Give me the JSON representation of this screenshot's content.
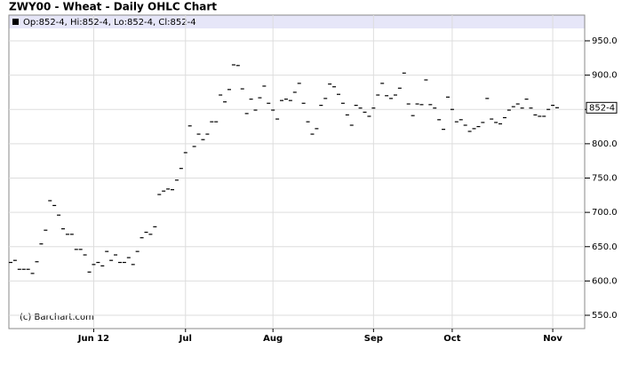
{
  "chart_data": {
    "type": "ohlc",
    "title": "ZWY00 - Wheat - Daily OHLC Chart",
    "legend_text": "Op:852-4, Hi:852-4, Lo:852-4, Cl:852-4",
    "source": "(c) Barchart.com",
    "values": [
      627,
      630,
      617,
      617,
      617,
      611,
      628,
      654,
      674,
      717,
      710,
      696,
      676,
      668,
      668,
      646,
      646,
      638,
      613,
      624,
      627,
      622,
      643,
      630,
      638,
      627,
      627,
      634,
      624,
      643,
      663,
      671,
      668,
      679,
      726,
      731,
      734,
      733,
      747,
      764,
      787,
      826,
      796,
      814,
      806,
      814,
      832,
      832,
      871,
      861,
      879,
      915,
      914,
      880,
      844,
      865,
      849,
      867,
      884,
      859,
      849,
      836,
      863,
      865,
      863,
      875,
      888,
      859,
      832,
      814,
      822,
      856,
      866,
      887,
      883,
      872,
      859,
      842,
      827,
      856,
      852,
      846,
      840,
      852,
      871,
      888,
      870,
      866,
      871,
      881,
      903,
      858,
      841,
      858,
      857,
      893,
      857,
      852,
      835,
      821,
      868,
      850,
      832,
      835,
      827,
      818,
      822,
      825,
      831,
      866,
      836,
      831,
      829,
      838,
      849,
      854,
      858,
      852,
      865,
      852,
      842,
      840,
      840,
      850,
      856,
      852.5
    ],
    "color": "#000000",
    "xlim": [
      -0.4,
      131.3
    ],
    "xticks": [
      {
        "value": 19,
        "label": "Jun 12"
      },
      {
        "value": 40,
        "label": "Jul"
      },
      {
        "value": 60,
        "label": "Aug"
      },
      {
        "value": 83,
        "label": "Sep"
      },
      {
        "value": 101,
        "label": "Oct"
      },
      {
        "value": 124,
        "label": "Nov"
      }
    ],
    "ylim": [
      530.6,
      987.5
    ],
    "yticks": [
      {
        "value": 550,
        "label": "550.0"
      },
      {
        "value": 600,
        "label": "600.0"
      },
      {
        "value": 650,
        "label": "650.0"
      },
      {
        "value": 700,
        "label": "700.0"
      },
      {
        "value": 750,
        "label": "750.0"
      },
      {
        "value": 800,
        "label": "800.0"
      },
      {
        "value": 850,
        "label": "850.0"
      },
      {
        "value": 900,
        "label": "900.0"
      },
      {
        "value": 950,
        "label": "950.0"
      }
    ],
    "last_price": {
      "value": 852.5,
      "label": "852-4"
    },
    "grid": true
  }
}
